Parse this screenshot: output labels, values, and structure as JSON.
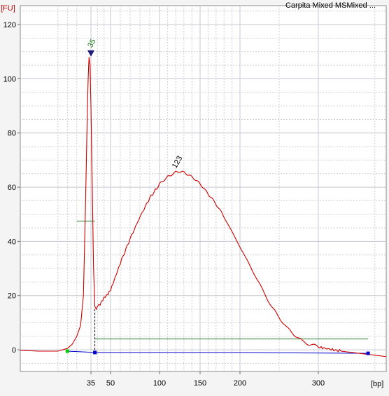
{
  "chart_data": {
    "type": "line",
    "title": "Carpita Mixed MSMixed ...",
    "ylabel": "[FU]",
    "xlabel": "[bp]",
    "ylim": [
      -8,
      127
    ],
    "yticks": [
      0,
      20,
      40,
      60,
      80,
      100,
      120
    ],
    "xticks": [
      35,
      50,
      100,
      150,
      200,
      300
    ],
    "grid": true,
    "series": [
      {
        "color": "#cc0000",
        "x": [
          -40,
          -20,
          -10,
          0,
          10,
          15,
          20,
          24,
          27,
          29,
          31,
          32,
          33,
          34,
          35,
          36,
          37,
          38,
          39,
          40,
          42,
          45,
          50,
          55,
          60,
          70,
          80,
          90,
          100,
          110,
          120,
          130,
          140,
          150,
          165,
          180,
          200,
          220,
          240,
          260,
          280,
          300,
          320,
          340,
          360
        ],
        "y": [
          -0.2,
          -0.5,
          -0.5,
          -0.5,
          0.5,
          2,
          5,
          9,
          20,
          50,
          85,
          100,
          108,
          105,
          90,
          60,
          30,
          16,
          15,
          16,
          17,
          19,
          22,
          27,
          32,
          41,
          49,
          56,
          61,
          64,
          65.5,
          65.5,
          64,
          61,
          56,
          49,
          38,
          27,
          16,
          8,
          3,
          1,
          -0.5,
          -1.5,
          -2.5
        ]
      }
    ],
    "peaks": [
      {
        "label": "35",
        "x": 35,
        "y": 110,
        "color": "#1a7a1a"
      },
      {
        "label": "123",
        "x": 123,
        "y": 66,
        "color": "#000000"
      }
    ],
    "region_lines": [
      {
        "x_start": 20,
        "x_end": 38,
        "y": 47.5,
        "color": "#2e7d32"
      },
      {
        "x_start": 38,
        "x_end": 344,
        "y": 4,
        "color": "#2e7d32"
      }
    ],
    "baseline": {
      "color": "#0000cc",
      "x": [
        10,
        38,
        185,
        344
      ],
      "y": [
        -0.5,
        -1.0,
        -1.0,
        -1.3
      ]
    },
    "markers": [
      {
        "x": 10,
        "y": -0.5,
        "color": "#00cc00"
      },
      {
        "x": 38,
        "y": -1.0,
        "color": "#0000cc"
      },
      {
        "x": 344,
        "y": -1.3,
        "color": "#0000cc"
      }
    ],
    "vline": {
      "x": 38,
      "y_from": 15,
      "y_to": -1
    }
  }
}
